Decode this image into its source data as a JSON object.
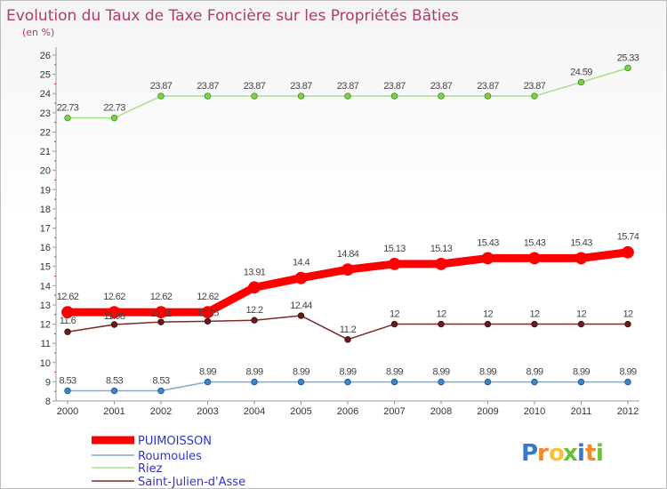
{
  "chart_data": {
    "type": "line",
    "title": "Evolution du Taux de Taxe Foncière sur les Propriétés Bâties",
    "subtitle": "(en %)",
    "xlabel": "",
    "ylabel": "",
    "categories": [
      "2000",
      "2001",
      "2002",
      "2003",
      "2004",
      "2005",
      "2006",
      "2007",
      "2008",
      "2009",
      "2010",
      "2011",
      "2012"
    ],
    "yticks": [
      "8",
      "9",
      "10",
      "11",
      "12",
      "13",
      "14",
      "15",
      "16",
      "17",
      "18",
      "19",
      "20",
      "21",
      "22",
      "23",
      "24",
      "25",
      "26"
    ],
    "ylim": [
      8,
      26
    ],
    "grid": false,
    "legend_position": "bottom-left",
    "series": [
      {
        "name": "PUIMOISSON",
        "color": "#ff0000",
        "values": [
          12.62,
          12.62,
          12.62,
          12.62,
          13.91,
          14.4,
          14.84,
          15.13,
          15.13,
          15.43,
          15.43,
          15.43,
          15.74
        ],
        "labels": [
          "12.62",
          "12.62",
          "12.62",
          "12.62",
          "13.91",
          "14.4",
          "14.84",
          "15.13",
          "15.13",
          "15.43",
          "15.43",
          "15.43",
          "15.74"
        ]
      },
      {
        "name": "Roumoules",
        "color": "#6b9bc8",
        "values": [
          8.53,
          8.53,
          8.53,
          8.99,
          8.99,
          8.99,
          8.99,
          8.99,
          8.99,
          8.99,
          8.99,
          8.99,
          8.99
        ],
        "labels": [
          "8.53",
          "8.53",
          "8.53",
          "8.99",
          "8.99",
          "8.99",
          "8.99",
          "8.99",
          "8.99",
          "8.99",
          "8.99",
          "8.99",
          "8.99"
        ]
      },
      {
        "name": "Riez",
        "color": "#99dd77",
        "values": [
          22.73,
          22.73,
          23.87,
          23.87,
          23.87,
          23.87,
          23.87,
          23.87,
          23.87,
          23.87,
          23.87,
          24.59,
          25.33
        ],
        "labels": [
          "22.73",
          "22.73",
          "23.87",
          "23.87",
          "23.87",
          "23.87",
          "23.87",
          "23.87",
          "23.87",
          "23.87",
          "23.87",
          "24.59",
          "25.33"
        ]
      },
      {
        "name": "Saint-Julien-d'Asse",
        "color": "#7a2a2a",
        "values": [
          11.6,
          11.98,
          12.11,
          12.15,
          12.2,
          12.44,
          11.2,
          12,
          12,
          12,
          12,
          12,
          12
        ],
        "labels": [
          "11.6",
          "11.98",
          "12.11",
          "12.15",
          "12.2",
          "12.44",
          "11.2",
          "12",
          "12",
          "12",
          "12",
          "12",
          "12"
        ]
      }
    ]
  },
  "logo": {
    "letters": [
      "P",
      "r",
      "o",
      "x",
      "i",
      "t",
      "i"
    ],
    "colors": [
      "#3a78c8",
      "#f08a2a",
      "#f6c23a",
      "#6cbf3a",
      "#3a78c8",
      "#f08a2a",
      "#6cbf3a"
    ]
  }
}
